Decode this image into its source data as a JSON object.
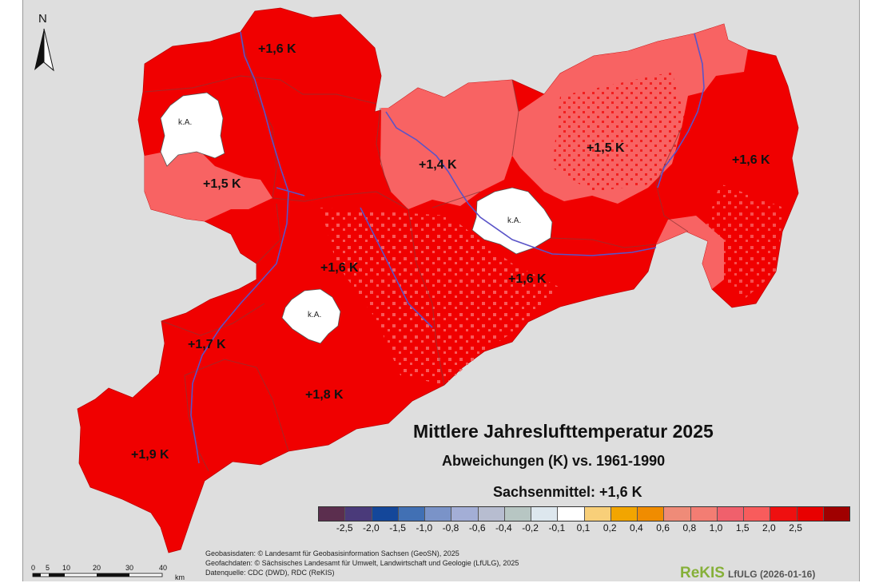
{
  "map": {
    "title": "Mittlere Jahreslufttemperatur 2025",
    "subtitle": "Abweichungen (K) vs. 1961-1990",
    "state_mean": "Sachsenmittel: +1,6 K",
    "north_label": "N",
    "no_data_label": "k.A.",
    "colors": {
      "background": "#dedede",
      "dark_red": "#f00000",
      "light_red": "#f86363",
      "no_data": "#ffffff",
      "river": "#5a54c8",
      "border": "#8c3535"
    },
    "region_labels": [
      {
        "name": "nordsachsen-north",
        "text": "+1,6 K"
      },
      {
        "name": "leipzig-west",
        "text": "+1,5 K"
      },
      {
        "name": "meissen",
        "text": "+1,4 K"
      },
      {
        "name": "bautzen",
        "text": "+1,5 K"
      },
      {
        "name": "goerlitz",
        "text": "+1,6 K"
      },
      {
        "name": "mittelsachsen",
        "text": "+1,6 K"
      },
      {
        "name": "saechsische-schweiz",
        "text": "+1,6 K"
      },
      {
        "name": "zwickau",
        "text": "+1,7 K"
      },
      {
        "name": "erzgebirge",
        "text": "+1,8 K"
      },
      {
        "name": "vogtland",
        "text": "+1,9 K"
      }
    ]
  },
  "legend": {
    "colors": [
      "#5b2e4e",
      "#4a3a7a",
      "#14479a",
      "#4170b4",
      "#7a93c8",
      "#a3aed6",
      "#b7bdd0",
      "#b7c6c3",
      "#dde7ee",
      "#ffffff",
      "#f8cf79",
      "#f2a500",
      "#f08c00",
      "#ef8b78",
      "#f37d73",
      "#f0606c",
      "#f85c5c",
      "#ef1010",
      "#e80000",
      "#a00000"
    ],
    "ticks": [
      "-2,5",
      "-2,0",
      "-1,5",
      "-1,0",
      "-0,8",
      "-0,6",
      "-0,4",
      "-0,2",
      "-0,1",
      "0,1",
      "0,2",
      "0,4",
      "0,6",
      "0,8",
      "1,0",
      "1,5",
      "2,0",
      "2,5"
    ]
  },
  "credits": {
    "line1": "Geobasisdaten: © Landesamt für Geobasisinformation Sachsen (GeoSN), 2025",
    "line2": "Geofachdaten: © Sächsisches Landesamt für Umwelt, Landwirtschaft und Geologie (LfULG), 2025",
    "line3": "Datenquelle: CDC (DWD), RDC (ReKIS)"
  },
  "logo": {
    "brand": "ReKIS",
    "suffix": "LfULG (2026-01-16)"
  },
  "scale_bar": {
    "ticks": [
      "0",
      "5",
      "10",
      "20",
      "30",
      "40"
    ],
    "unit": "km"
  }
}
